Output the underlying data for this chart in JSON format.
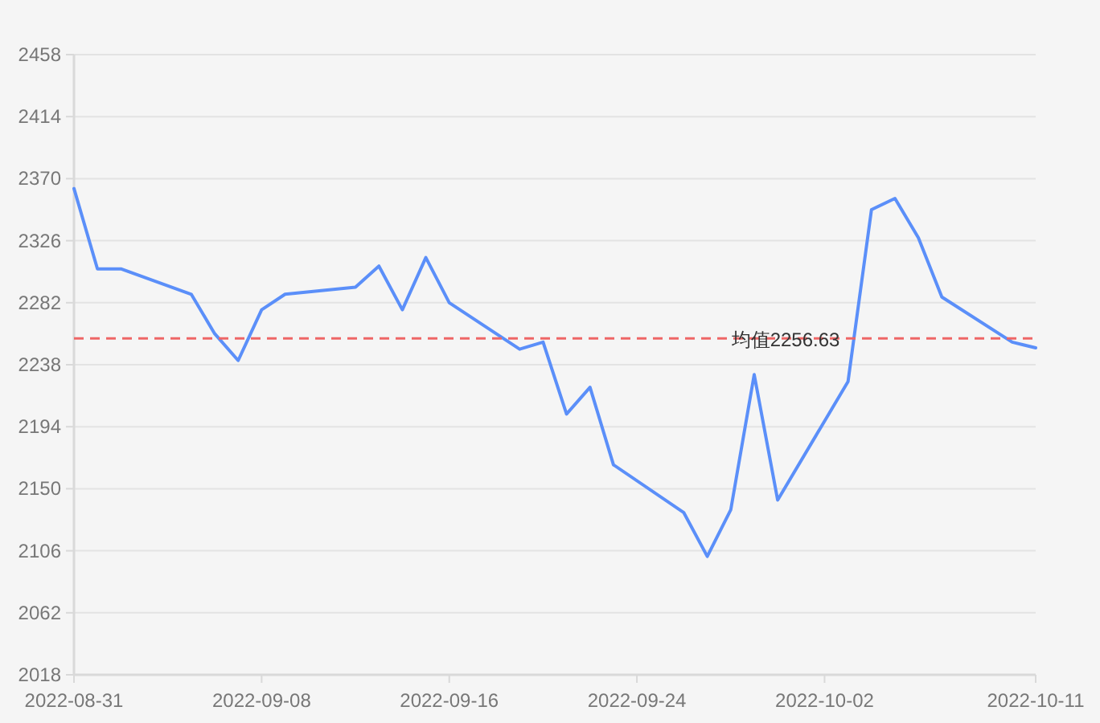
{
  "chart_data": {
    "type": "line",
    "x": [
      "2022-08-31",
      "2022-09-01",
      "2022-09-02",
      "2022-09-05",
      "2022-09-06",
      "2022-09-07",
      "2022-09-08",
      "2022-09-09",
      "2022-09-12",
      "2022-09-13",
      "2022-09-14",
      "2022-09-15",
      "2022-09-16",
      "2022-09-19",
      "2022-09-20",
      "2022-09-21",
      "2022-09-22",
      "2022-09-23",
      "2022-09-26",
      "2022-09-27",
      "2022-09-28",
      "2022-09-29",
      "2022-09-30",
      "2022-10-03",
      "2022-10-04",
      "2022-10-05",
      "2022-10-06",
      "2022-10-07",
      "2022-10-10",
      "2022-10-11"
    ],
    "series": [
      {
        "color": "#5b8ff9",
        "values": [
          2363,
          2306,
          2306,
          2288,
          2260,
          2241,
          2277,
          2288,
          2293,
          2308,
          2277,
          2314,
          2282,
          2249,
          2254,
          2203,
          2222,
          2167,
          2133,
          2102,
          2135,
          2231,
          2142,
          2226,
          2348,
          2356,
          2328,
          2286,
          2254,
          2250
        ]
      }
    ],
    "xlim": [
      "2022-08-31",
      "2022-10-11"
    ],
    "xticks": [
      {
        "value": "2022-08-31",
        "label": "2022-08-31"
      },
      {
        "value": "2022-09-08",
        "label": "2022-09-08"
      },
      {
        "value": "2022-09-16",
        "label": "2022-09-16"
      },
      {
        "value": "2022-09-24",
        "label": "2022-09-24"
      },
      {
        "value": "2022-10-02",
        "label": "2022-10-02"
      },
      {
        "value": "2022-10-11",
        "label": "2022-10-11"
      }
    ],
    "ylim": [
      2018,
      2458
    ],
    "yticks": [
      2018,
      2062,
      2106,
      2150,
      2194,
      2238,
      2282,
      2326,
      2370,
      2414,
      2458
    ],
    "grid": "y",
    "marker": "none",
    "line_style": "solid",
    "ref_lines": [
      {
        "axis": "y",
        "value": 2256.63,
        "label": "均值2256.63",
        "color": "#ee6666",
        "line_style": "dashed"
      }
    ]
  }
}
